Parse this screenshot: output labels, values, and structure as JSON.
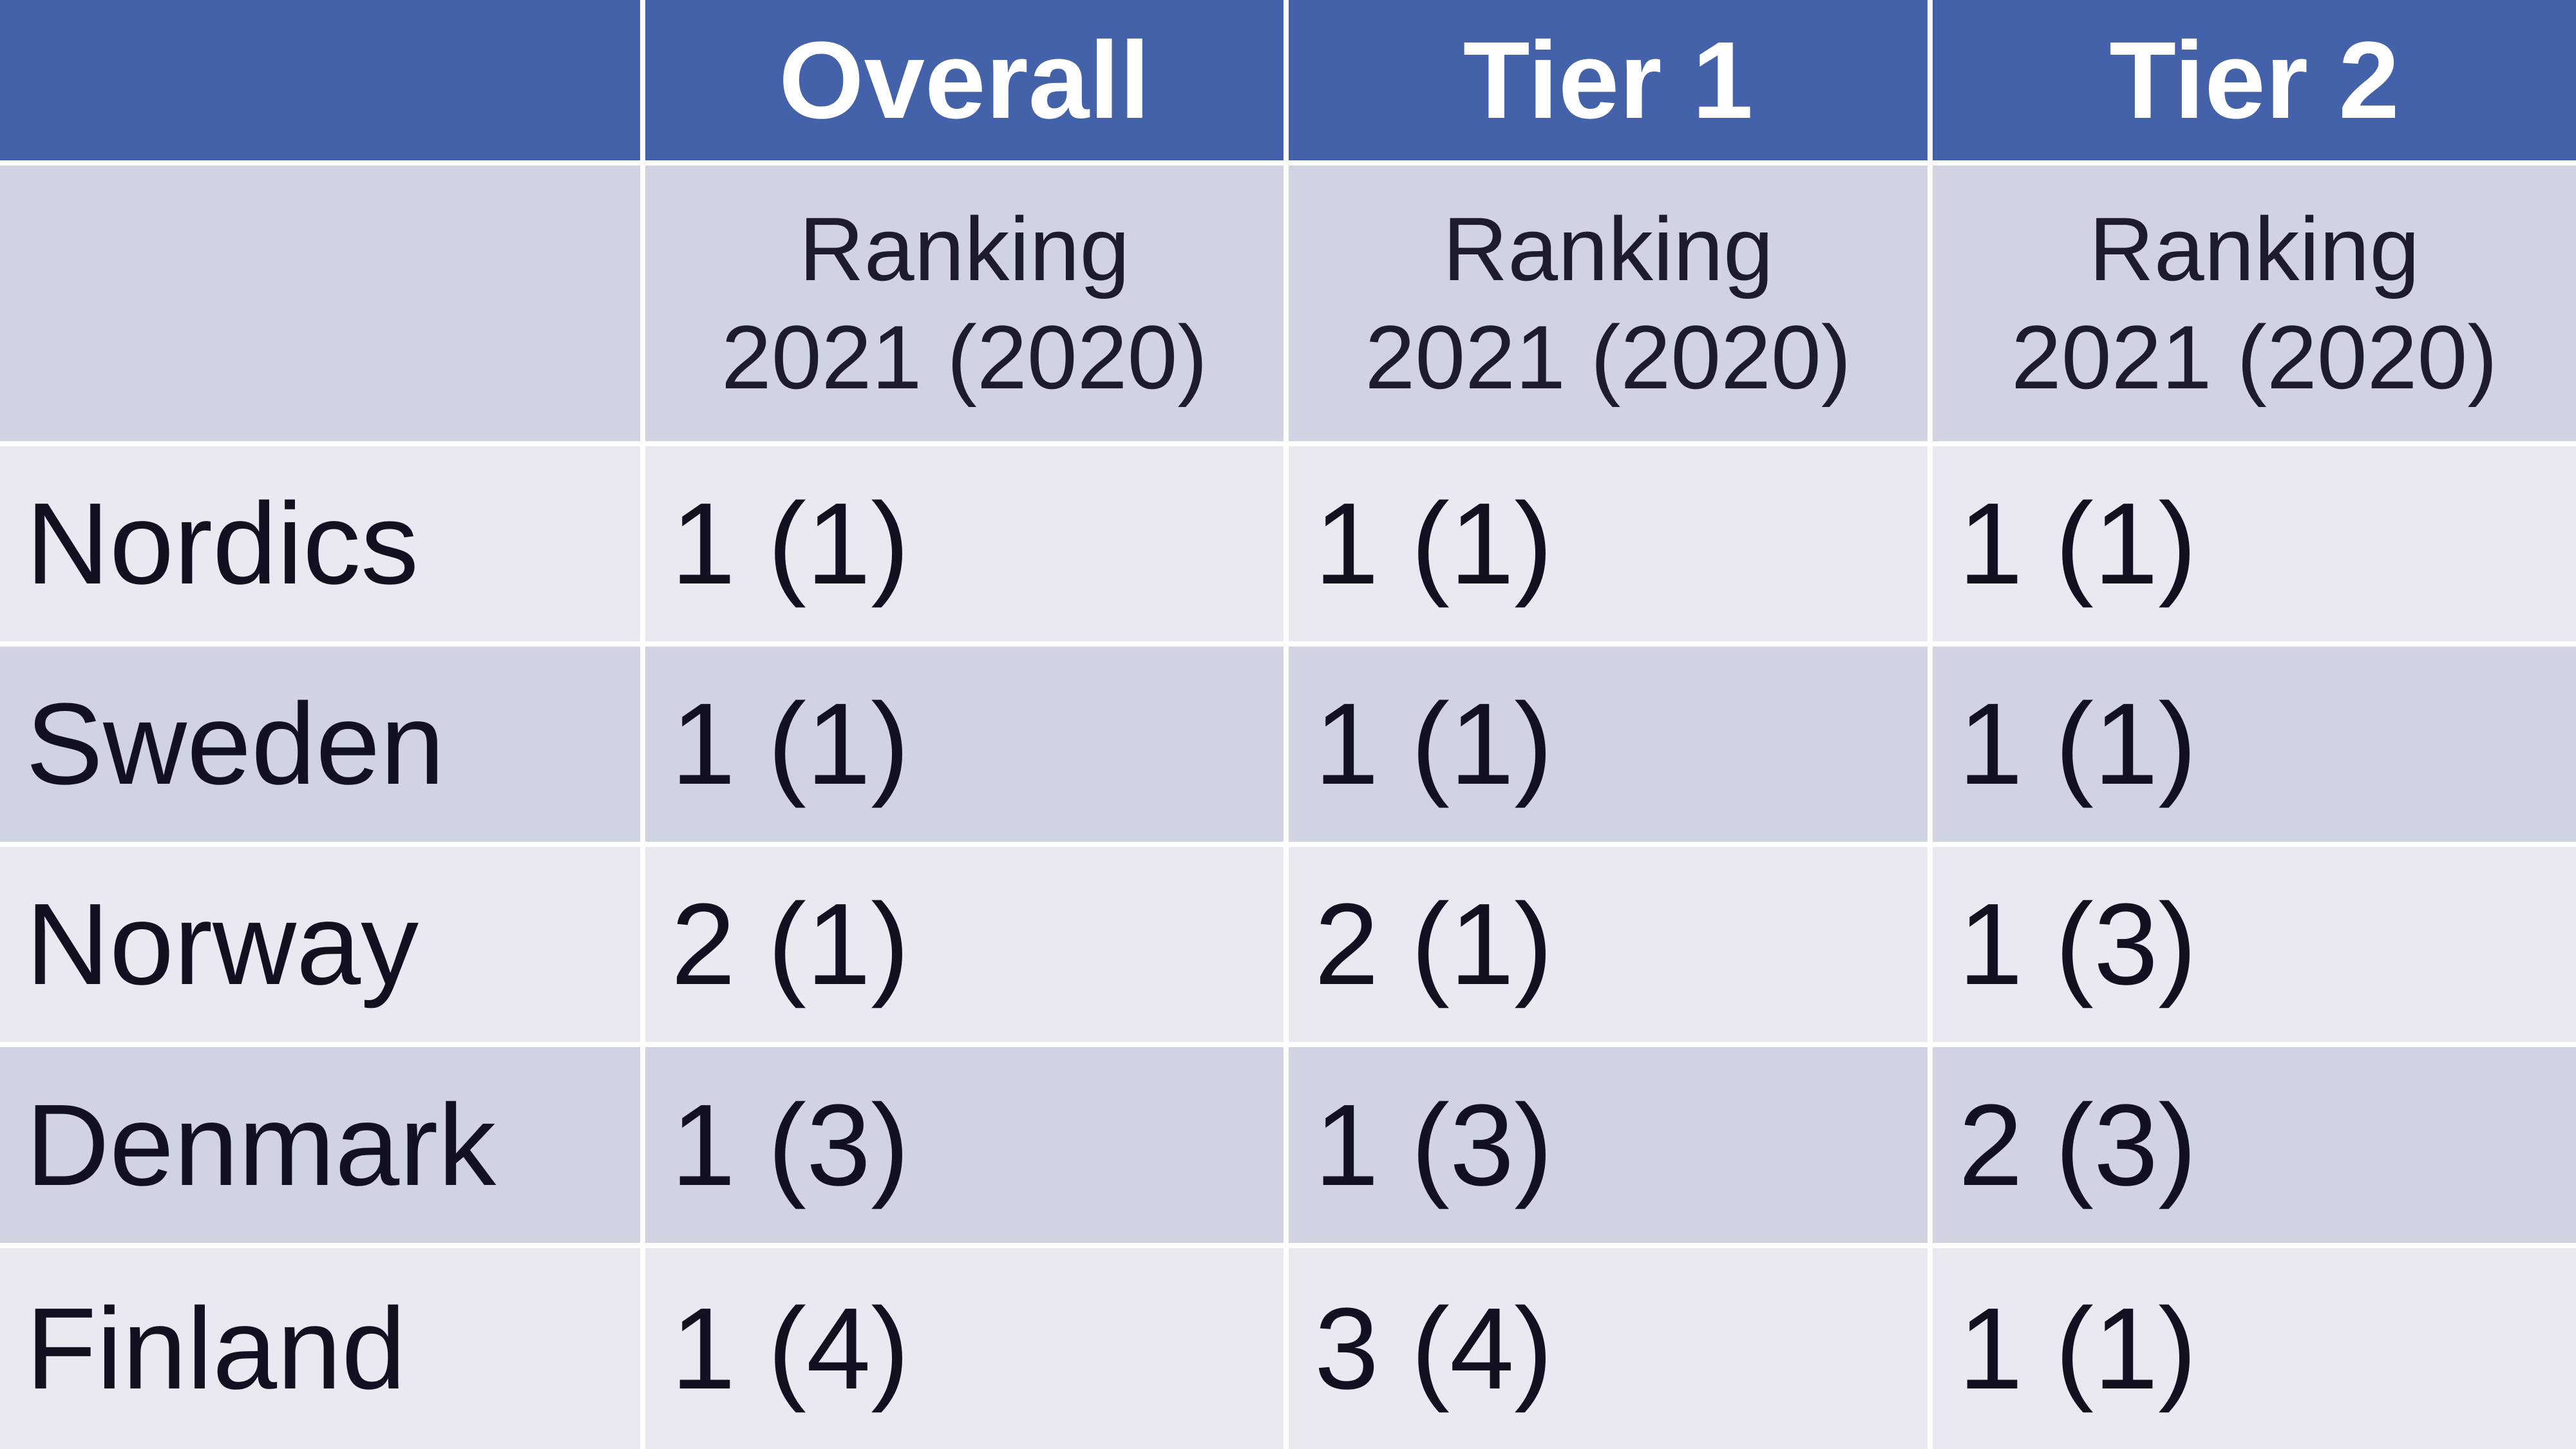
{
  "header": {
    "columns": [
      "Overall",
      "Tier 1",
      "Tier 2"
    ]
  },
  "subheader": [
    [
      "Ranking",
      "2021 (2020)"
    ],
    [
      "Ranking",
      "2021 (2020)"
    ],
    [
      "Ranking",
      "2021 (2020)"
    ]
  ],
  "table": {
    "rows": [
      {
        "label": "Nordics",
        "cells": [
          "1 (1)",
          "1 (1)",
          "1 (1)"
        ]
      },
      {
        "label": "Sweden",
        "cells": [
          "1 (1)",
          "1 (1)",
          "1 (1)"
        ]
      },
      {
        "label": "Norway",
        "cells": [
          "2 (1)",
          "2 (1)",
          "1 (3)"
        ]
      },
      {
        "label": "Denmark",
        "cells": [
          "1 (3)",
          "1 (3)",
          "2 (3)"
        ]
      },
      {
        "label": "Finland",
        "cells": [
          "1 (4)",
          "3 (4)",
          "1 (1)"
        ]
      }
    ]
  }
}
